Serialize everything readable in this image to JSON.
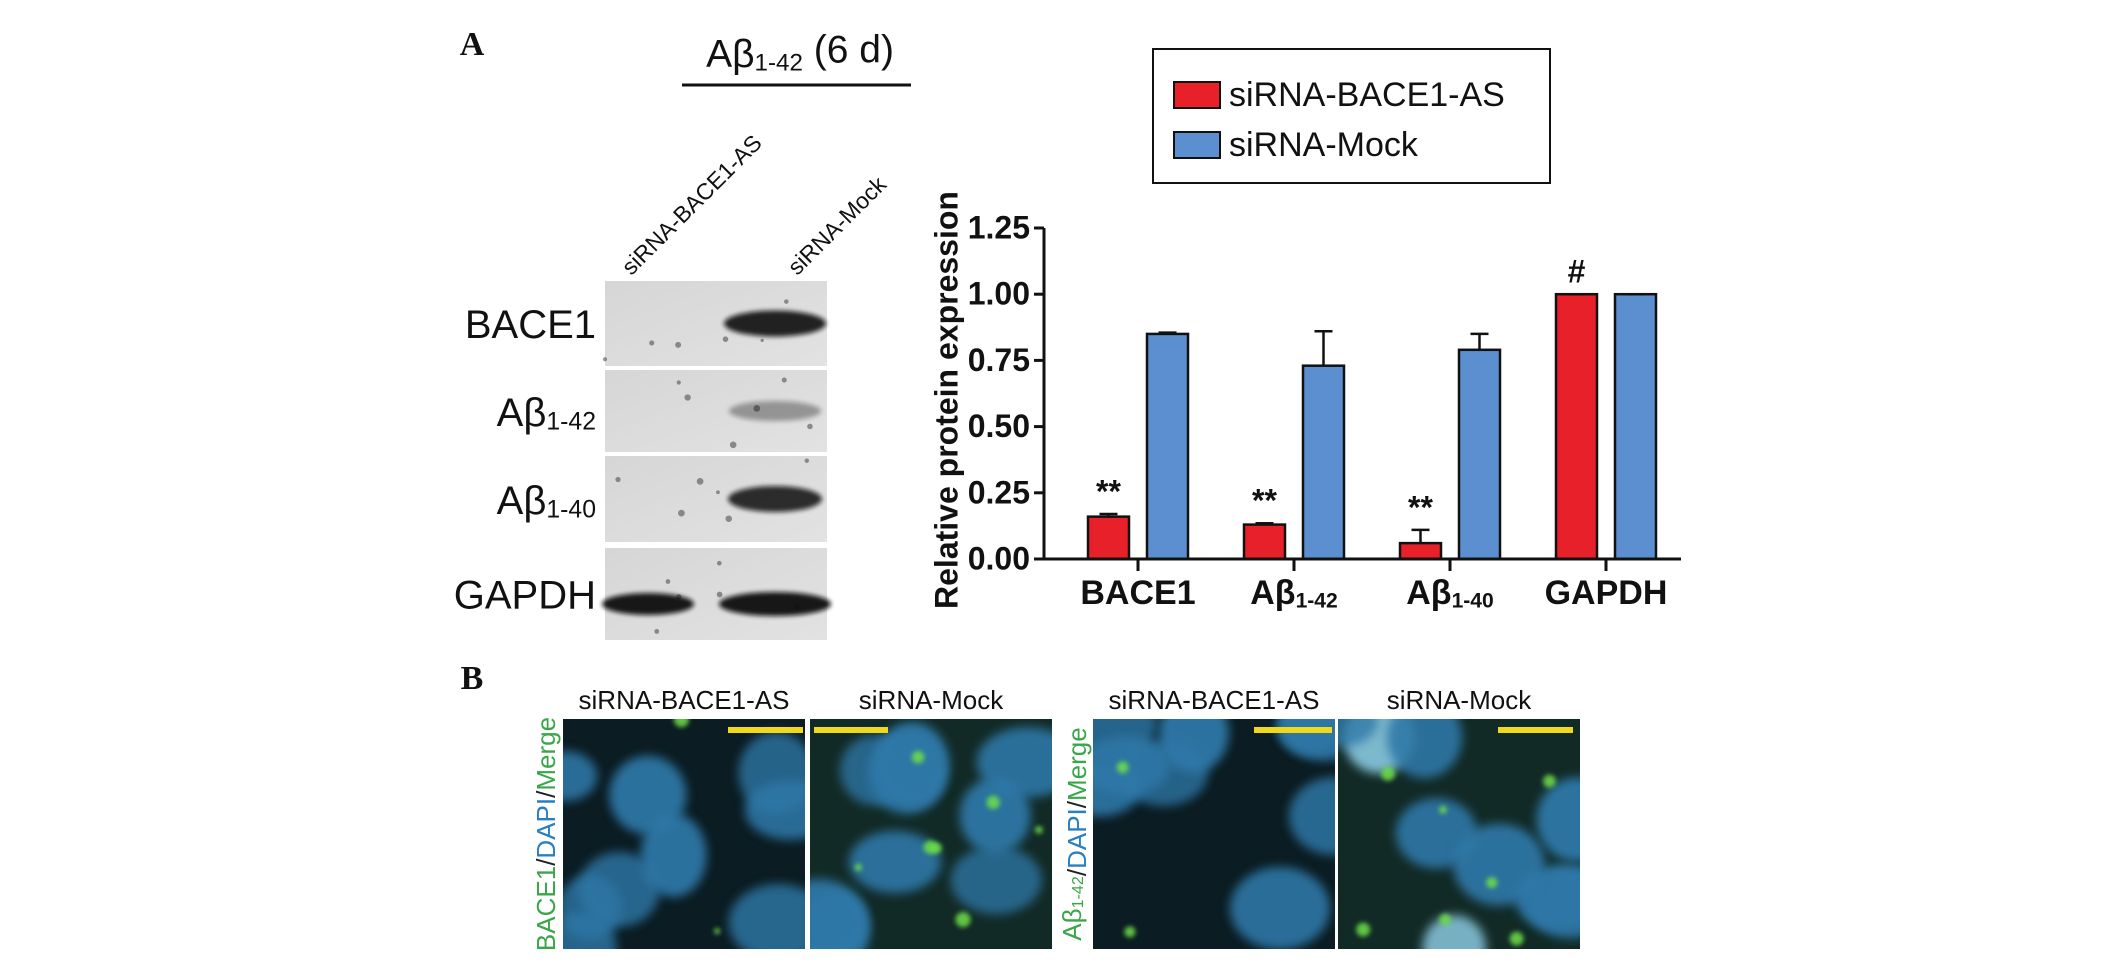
{
  "panel_a": {
    "label": "A",
    "treatment": "Aβ1-42 (6 d)",
    "lanes": [
      "siRNA-BACE1-AS",
      "siRNA-Mock"
    ],
    "blot_rows": [
      "BACE1",
      "Aβ1-42",
      "Aβ1-40",
      "GAPDH"
    ]
  },
  "chart_data": {
    "type": "bar",
    "y_label": "Relative protein expression",
    "categories": [
      "BACE1",
      "Aβ1-42",
      "Aβ1-40",
      "GAPDH"
    ],
    "series": [
      {
        "name": "siRNA-BACE1-AS",
        "color": "#e8202a",
        "values": [
          0.16,
          0.13,
          0.06,
          1.0
        ],
        "errors": [
          0.01,
          0.005,
          0.05,
          0
        ],
        "significance": [
          "**",
          "**",
          "**",
          "#"
        ]
      },
      {
        "name": "siRNA-Mock",
        "color": "#5b8fd0",
        "values": [
          0.85,
          0.73,
          0.79,
          1.0
        ],
        "errors": [
          0.005,
          0.13,
          0.06,
          0
        ]
      }
    ],
    "ylim": [
      0,
      1.25
    ],
    "yticks": [
      {
        "value": 0,
        "label": "0.00"
      },
      {
        "value": 0.25,
        "label": "0.25"
      },
      {
        "value": 0.5,
        "label": "0.50"
      },
      {
        "value": 0.75,
        "label": "0.75"
      },
      {
        "value": 1,
        "label": "1.00"
      },
      {
        "value": 1.25,
        "label": "1.25"
      }
    ],
    "grid": false
  },
  "panel_b": {
    "label": "B",
    "groups": [
      {
        "stain": [
          {
            "text": "BACE1",
            "color": "#3aa64a"
          },
          {
            "text": "/",
            "color": "#222222"
          },
          {
            "text": "DAPI",
            "color": "#2a7fc0"
          },
          {
            "text": "/",
            "color": "#222222"
          },
          {
            "text": "Merge",
            "color": "#3aa64a"
          }
        ],
        "columns": [
          "siRNA-BACE1-AS",
          "siRNA-Mock"
        ]
      },
      {
        "stain": [
          {
            "text": "Aβ1-42",
            "color": "#3aa64a"
          },
          {
            "text": "/",
            "color": "#222222"
          },
          {
            "text": "DAPI",
            "color": "#2a7fc0"
          },
          {
            "text": "/",
            "color": "#222222"
          },
          {
            "text": "Merge",
            "color": "#3aa64a"
          }
        ],
        "columns": [
          "siRNA-BACE1-AS",
          "siRNA-Mock"
        ]
      }
    ]
  }
}
